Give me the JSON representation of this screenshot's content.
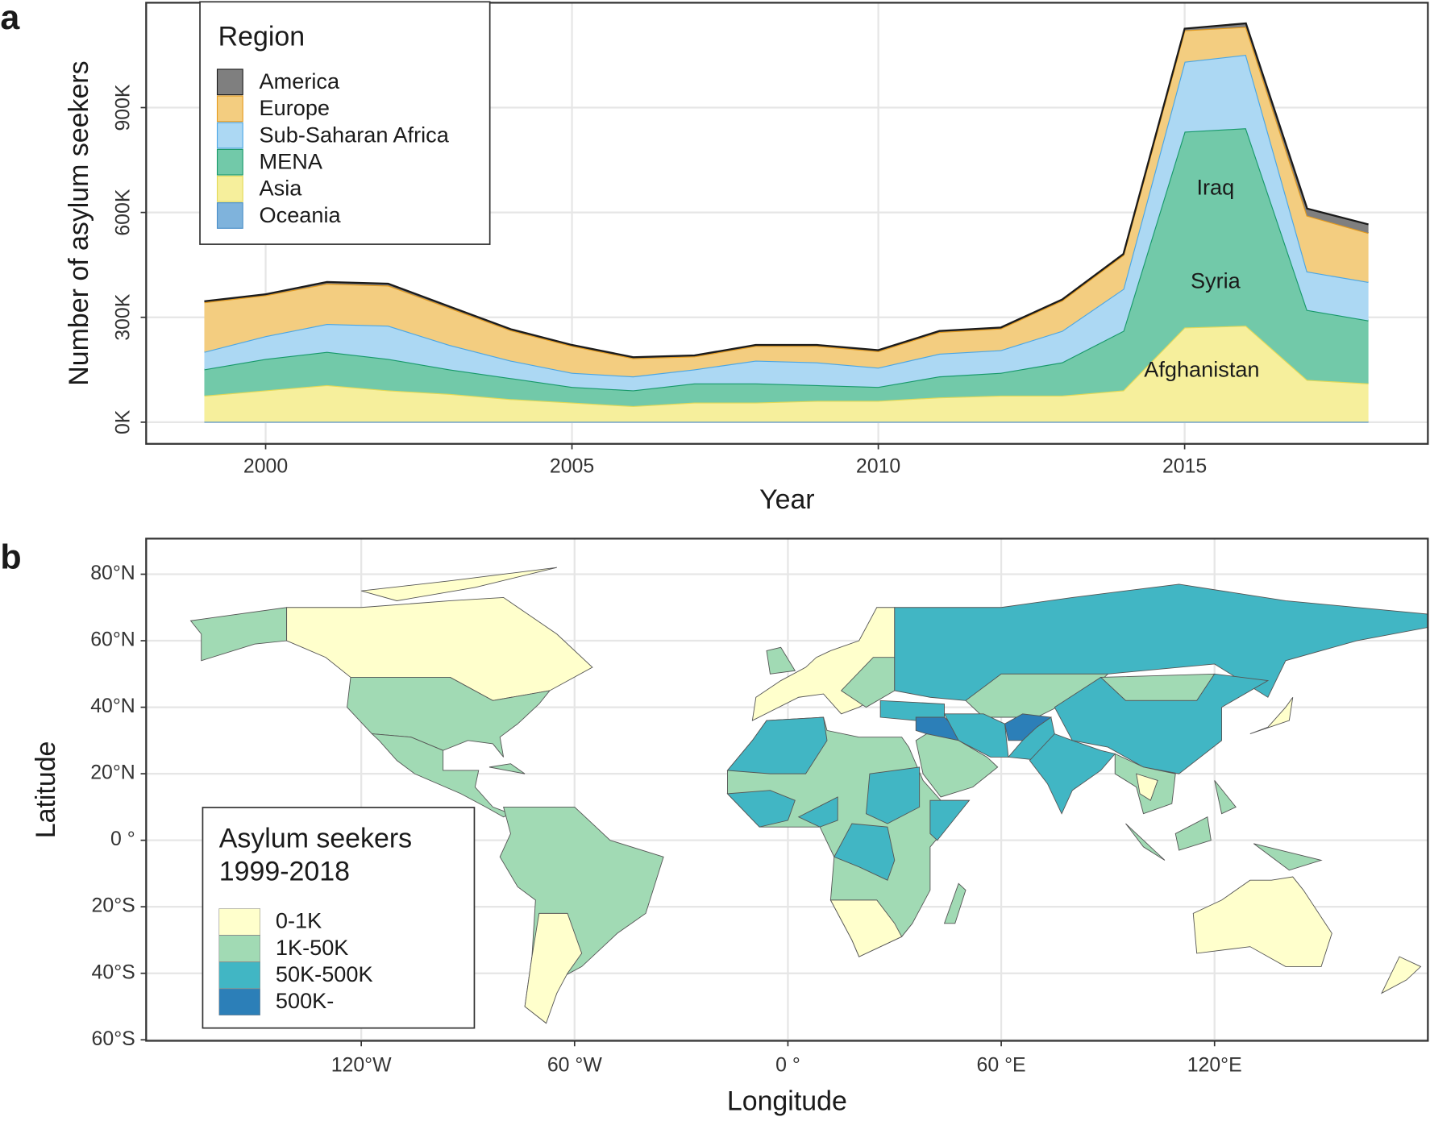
{
  "chart_data": [
    {
      "type": "area",
      "panel_label": "a",
      "x_label": "Year",
      "y_label": "Number of asylum seekers",
      "x": [
        1999,
        2000,
        2001,
        2002,
        2003,
        2004,
        2005,
        2006,
        2007,
        2008,
        2009,
        2010,
        2011,
        2012,
        2013,
        2014,
        2015,
        2016,
        2017,
        2018
      ],
      "xlim": [
        1998.05,
        2018.97
      ],
      "xticks": [
        2000,
        2005,
        2010,
        2015
      ],
      "ylim": [
        -62000,
        1200000
      ],
      "yticks": [
        {
          "value": 0,
          "label": "0K"
        },
        {
          "value": 300000,
          "label": "300K"
        },
        {
          "value": 600000,
          "label": "600K"
        },
        {
          "value": 900000,
          "label": "900K"
        }
      ],
      "grid": true,
      "stacked": true,
      "legend_title": "Region",
      "legend_position": "top-left",
      "series": [
        {
          "name": "America",
          "color": "#7f7f7f",
          "line_color": "#1a1a1a",
          "values": [
            3000,
            3000,
            5000,
            5000,
            4000,
            3000,
            3000,
            3000,
            3000,
            3000,
            3000,
            3000,
            3000,
            3000,
            3000,
            3000,
            5000,
            10000,
            20000,
            25000
          ]
        },
        {
          "name": "Europe",
          "color": "#f3cd80",
          "line_color": "#e49a1c",
          "values": [
            142000,
            117000,
            115000,
            115000,
            106000,
            87000,
            77000,
            52000,
            37000,
            42000,
            47000,
            47000,
            62000,
            62000,
            87000,
            97000,
            90000,
            80000,
            160000,
            140000
          ]
        },
        {
          "name": "Sub-Saharan Africa",
          "color": "#acd8f3",
          "line_color": "#4ba6e4",
          "values": [
            50000,
            65000,
            80000,
            95000,
            70000,
            50000,
            40000,
            40000,
            40000,
            65000,
            65000,
            55000,
            65000,
            65000,
            90000,
            120000,
            200000,
            210000,
            110000,
            110000
          ]
        },
        {
          "name": "MENA",
          "color": "#72c9a9",
          "line_color": "#17996a",
          "values": [
            75000,
            90000,
            95000,
            90000,
            70000,
            60000,
            45000,
            45000,
            55000,
            55000,
            45000,
            40000,
            60000,
            65000,
            95000,
            170000,
            560000,
            565000,
            200000,
            180000
          ]
        },
        {
          "name": "Asia",
          "color": "#f6ef9c",
          "line_color": "#e3d956",
          "values": [
            75000,
            90000,
            105000,
            90000,
            80000,
            65000,
            55000,
            45000,
            55000,
            55000,
            60000,
            60000,
            70000,
            75000,
            75000,
            90000,
            270000,
            275000,
            120000,
            110000
          ]
        },
        {
          "name": "Oceania",
          "color": "#7fb3dc",
          "line_color": "#4b8fc8",
          "values": [
            1000,
            1000,
            1000,
            1000,
            1000,
            1000,
            1000,
            1000,
            1000,
            1000,
            1000,
            1000,
            1000,
            1000,
            1000,
            1000,
            1000,
            1000,
            1000,
            1000
          ]
        }
      ],
      "annotations": [
        "Iraq",
        "Syria",
        "Afghanistan"
      ]
    },
    {
      "type": "map",
      "panel_label": "b",
      "x_label": "Longitude",
      "y_label": "Latitude",
      "xlim": [
        -180.5,
        180
      ],
      "ylim": [
        -60.3,
        90.7
      ],
      "xticks": [
        {
          "value": -120,
          "label": "120°W"
        },
        {
          "value": -60,
          "label": "60 °W"
        },
        {
          "value": 0,
          "label": "0 °"
        },
        {
          "value": 60,
          "label": "60 °E"
        },
        {
          "value": 120,
          "label": "120°E"
        }
      ],
      "yticks": [
        {
          "value": -60,
          "label": "60°S"
        },
        {
          "value": -40,
          "label": "40°S"
        },
        {
          "value": -20,
          "label": "20°S"
        },
        {
          "value": 0,
          "label": "0 °"
        },
        {
          "value": 20,
          "label": "20°N"
        },
        {
          "value": 40,
          "label": "40°N"
        },
        {
          "value": 60,
          "label": "60°N"
        },
        {
          "value": 80,
          "label": "80°N"
        }
      ],
      "grid": true,
      "legend_title": [
        "Asylum seekers",
        "1999-2018"
      ],
      "legend_position": "bottom-left",
      "categories": [
        "0-1K",
        "1K-50K",
        "50K-500K",
        "500K-"
      ],
      "colors": [
        "#ffffcc",
        "#a1dab4",
        "#41b6c4",
        "#2c7fb8"
      ]
    }
  ]
}
